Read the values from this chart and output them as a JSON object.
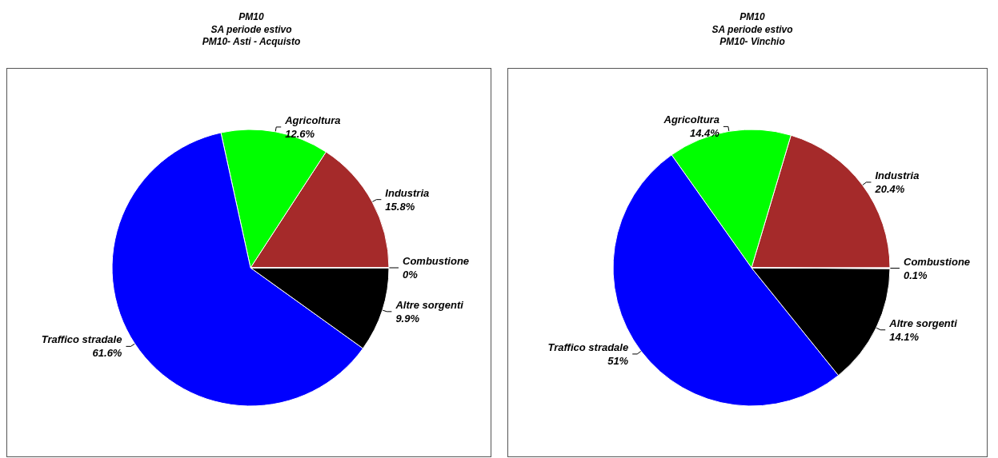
{
  "chart_data": [
    {
      "type": "pie",
      "title": "PM10",
      "subtitle": "SA periode estivo\nPM10- Asti - Acquisto",
      "categories": [
        "Industria",
        "Agricoltura",
        "Traffico stradale",
        "Altre sorgenti",
        "Combustione"
      ],
      "values": [
        15.8,
        12.6,
        61.6,
        9.9,
        0
      ],
      "value_labels": [
        "15.8%",
        "12.6%",
        "61.6%",
        "9.9%",
        "0%"
      ],
      "colors": [
        "#a52a2a",
        "#00ff00",
        "#0000ff",
        "#000000",
        "#ffffff"
      ]
    },
    {
      "type": "pie",
      "title": "PM10",
      "subtitle": "SA periode estivo\nPM10- Vinchio",
      "categories": [
        "Industria",
        "Agricoltura",
        "Traffico stradale",
        "Altre sorgenti",
        "Combustione"
      ],
      "values": [
        20.4,
        14.4,
        51,
        14.1,
        0.1
      ],
      "value_labels": [
        "20.4%",
        "14.4%",
        "51%",
        "14.1%",
        "0.1%"
      ],
      "colors": [
        "#a52a2a",
        "#00ff00",
        "#0000ff",
        "#000000",
        "#ffffff"
      ]
    }
  ]
}
